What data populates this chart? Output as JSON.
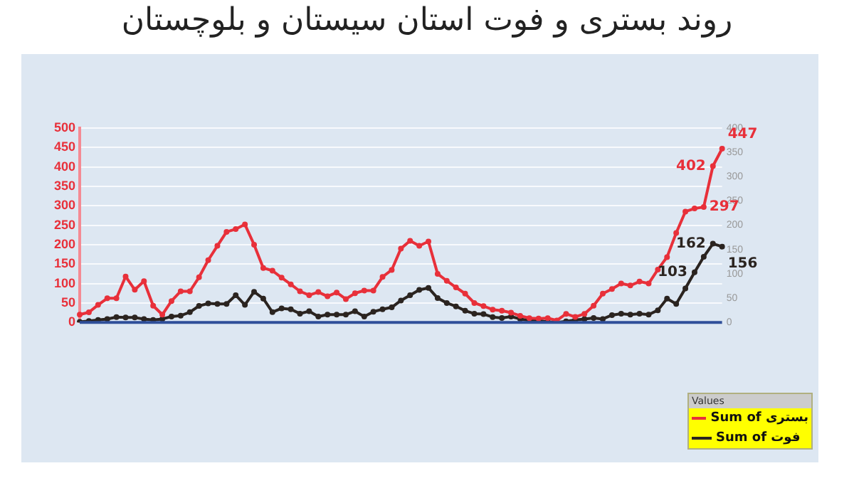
{
  "chart_data": {
    "type": "line",
    "title": "روند بستری و فوت استان سیستان و بلوچستان",
    "categories": [
      null,
      null,
      null,
      null,
      null,
      null,
      null,
      null,
      null,
      null,
      null,
      null,
      null,
      null,
      null,
      null,
      null,
      null,
      null,
      null,
      null,
      null,
      null,
      null,
      null,
      null,
      null,
      null,
      null,
      null,
      null,
      null,
      null,
      null,
      null,
      null,
      null,
      null,
      null,
      null,
      null,
      null,
      null,
      null,
      null,
      null,
      null,
      null,
      null,
      null,
      null,
      null,
      null,
      null,
      null,
      null,
      null,
      null,
      null,
      null,
      null,
      null,
      null,
      null,
      null,
      null,
      null,
      null,
      null,
      null,
      null
    ],
    "series": [
      {
        "name": "Sum of بستری",
        "color": "#e8303a",
        "values": [
          20,
          26,
          45,
          62,
          62,
          118,
          84,
          106,
          43,
          20,
          55,
          80,
          80,
          116,
          160,
          197,
          233,
          240,
          252,
          200,
          140,
          133,
          115,
          98,
          80,
          70,
          78,
          67,
          77,
          60,
          75,
          82,
          82,
          117,
          135,
          190,
          210,
          197,
          208,
          125,
          107,
          90,
          74,
          50,
          42,
          33,
          30,
          25,
          17,
          11,
          10,
          11,
          5,
          22,
          14,
          22,
          43,
          74,
          86,
          100,
          95,
          105,
          100,
          136,
          168,
          230,
          285,
          293,
          297,
          402,
          447
        ],
        "value_labels": [
          null,
          null,
          null,
          null,
          null,
          null,
          null,
          null,
          null,
          null,
          null,
          null,
          null,
          null,
          null,
          null,
          null,
          null,
          null,
          null,
          null,
          null,
          null,
          null,
          null,
          null,
          null,
          null,
          null,
          null,
          null,
          null,
          null,
          null,
          null,
          null,
          null,
          null,
          null,
          null,
          null,
          null,
          null,
          null,
          null,
          null,
          null,
          null,
          null,
          null,
          null,
          null,
          null,
          null,
          null,
          null,
          null,
          null,
          null,
          null,
          null,
          null,
          null,
          null,
          null,
          null,
          null,
          null,
          "297",
          "402",
          "447"
        ]
      },
      {
        "name": "Sum of فوت",
        "color": "#2b2420",
        "axis": "y2",
        "values": [
          1,
          3,
          5,
          7,
          11,
          10,
          10,
          7,
          5,
          7,
          12,
          14,
          21,
          34,
          39,
          38,
          38,
          56,
          36,
          63,
          49,
          21,
          29,
          27,
          18,
          23,
          12,
          16,
          16,
          16,
          23,
          12,
          22,
          27,
          31,
          45,
          56,
          67,
          71,
          50,
          40,
          33,
          24,
          18,
          17,
          11,
          9,
          12,
          7,
          4,
          4,
          1,
          0,
          2,
          5,
          7,
          9,
          7,
          15,
          18,
          16,
          18,
          16,
          25,
          49,
          38,
          70,
          103,
          135,
          162,
          156
        ],
        "value_labels": [
          null,
          null,
          null,
          null,
          null,
          null,
          null,
          null,
          null,
          null,
          null,
          null,
          null,
          null,
          null,
          null,
          null,
          null,
          null,
          null,
          null,
          null,
          null,
          null,
          null,
          null,
          null,
          null,
          null,
          null,
          null,
          null,
          null,
          null,
          null,
          null,
          null,
          null,
          null,
          null,
          null,
          null,
          null,
          null,
          null,
          null,
          null,
          null,
          null,
          null,
          null,
          null,
          null,
          null,
          null,
          null,
          null,
          null,
          null,
          null,
          null,
          null,
          null,
          null,
          null,
          null,
          null,
          "103",
          null,
          "162",
          "156"
        ]
      }
    ],
    "ylim": [
      0,
      500
    ],
    "yticks": [
      0,
      50,
      100,
      150,
      200,
      250,
      300,
      350,
      400,
      450,
      500
    ],
    "y2lim": [
      0,
      400
    ],
    "y2ticks": [
      0,
      50,
      100,
      150,
      200,
      250,
      300,
      350,
      400
    ],
    "grid": "y",
    "legend": "bottom right",
    "legend_title": "Values",
    "marker": "circle",
    "line_style": "solid"
  }
}
